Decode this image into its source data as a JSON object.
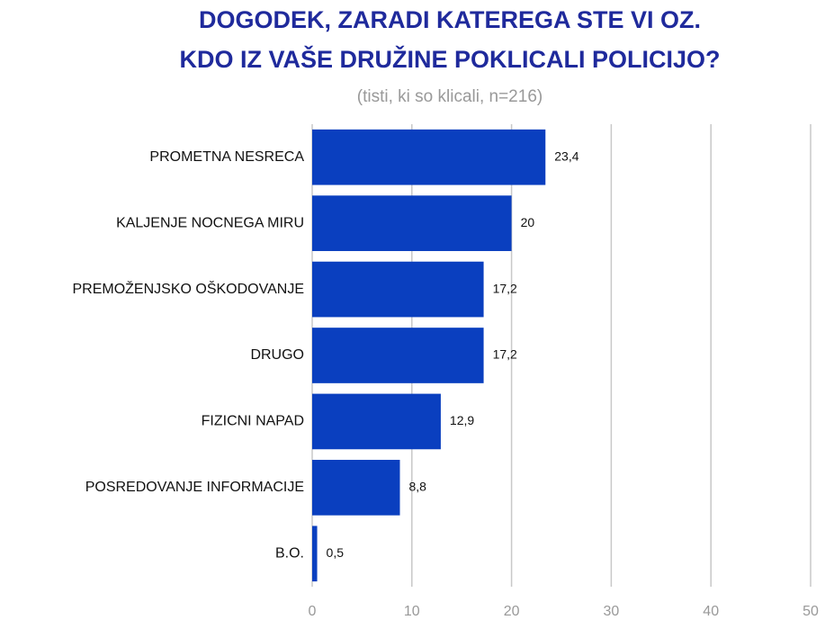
{
  "chart_data": {
    "type": "bar",
    "orientation": "horizontal",
    "title": [
      "DOGODEK, ZARADI KATEREGA STE VI OZ.",
      "KDO IZ VAŠE DRUŽINE POKLICALI POLICIJO?"
    ],
    "subtitle": "(tisti, ki so klicali, n=216)",
    "categories": [
      "PROMETNA NESRECA",
      "KALJENJE NOCNEGA MIRU",
      "PREMOŽENJSKO OŠKODOVANJE",
      "DRUGO",
      "FIZICNI NAPAD",
      "POSREDOVANJE INFORMACIJE",
      "B.O."
    ],
    "values": [
      23.4,
      20,
      17.2,
      17.2,
      12.9,
      8.8,
      0.5
    ],
    "value_labels": [
      "23,4",
      "20",
      "17,2",
      "17,2",
      "12,9",
      "8,8",
      "0,5"
    ],
    "color": "#0a3fbf",
    "xlim": [
      0,
      50
    ],
    "xticks": [
      0,
      10,
      20,
      30,
      40,
      50
    ],
    "grid": true
  }
}
